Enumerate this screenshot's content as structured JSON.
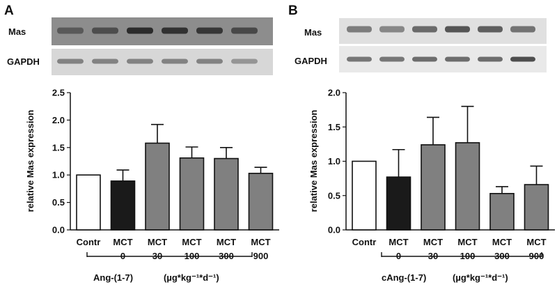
{
  "colors": {
    "control_fill": "#ffffff",
    "mct_fill": "#1a1a1a",
    "treated_fill": "#808080",
    "outline": "#111111"
  },
  "panels": [
    {
      "letter": "A",
      "blot_labels": [
        "Mas",
        "GAPDH"
      ],
      "blot_band_intensity": {
        "Mas": [
          0.45,
          0.55,
          0.85,
          0.8,
          0.75,
          0.6
        ],
        "GAPDH": [
          0.45,
          0.45,
          0.45,
          0.45,
          0.45,
          0.35
        ]
      },
      "treatment_label": "Ang-(1-7)",
      "unit_label": "(µg*kg⁻¹*d⁻¹)"
    },
    {
      "letter": "B",
      "blot_labels": [
        "Mas",
        "GAPDH"
      ],
      "blot_band_intensity": {
        "Mas": [
          0.5,
          0.45,
          0.6,
          0.7,
          0.65,
          0.55
        ],
        "GAPDH": [
          0.55,
          0.55,
          0.6,
          0.6,
          0.6,
          0.75
        ]
      },
      "treatment_label": "cAng-(1-7)",
      "unit_label": "(µg*kg⁻¹*d⁻¹)"
    }
  ],
  "chart_data": [
    {
      "type": "bar",
      "title": "",
      "xlabel": "",
      "ylabel": "relative Mas expression",
      "ylim": [
        0,
        2.5
      ],
      "yticks": [
        "0.0",
        "0.5",
        "1.0",
        "1.5",
        "2.0",
        "2.5"
      ],
      "categories": [
        {
          "line1": "Contr",
          "line2": ""
        },
        {
          "line1": "MCT",
          "line2": "0"
        },
        {
          "line1": "MCT",
          "line2": "30"
        },
        {
          "line1": "MCT",
          "line2": "100"
        },
        {
          "line1": "MCT",
          "line2": "300"
        },
        {
          "line1": "MCT",
          "line2": "900"
        }
      ],
      "values": [
        1.0,
        0.89,
        1.58,
        1.31,
        1.3,
        1.03
      ],
      "errors": [
        0,
        0.2,
        0.34,
        0.2,
        0.2,
        0.11
      ],
      "groups": [
        "control",
        "mct",
        "treated",
        "treated",
        "treated",
        "treated"
      ]
    },
    {
      "type": "bar",
      "title": "",
      "xlabel": "",
      "ylabel": "relative Mas expression",
      "ylim": [
        0,
        2.0
      ],
      "yticks": [
        "0.0",
        "0.5",
        "1.0",
        "1.5",
        "2.0"
      ],
      "categories": [
        {
          "line1": "Contr",
          "line2": ""
        },
        {
          "line1": "MCT",
          "line2": "0"
        },
        {
          "line1": "MCT",
          "line2": "30"
        },
        {
          "line1": "MCT",
          "line2": "100"
        },
        {
          "line1": "MCT",
          "line2": "300"
        },
        {
          "line1": "MCT",
          "line2": "900"
        }
      ],
      "values": [
        1.0,
        0.77,
        1.24,
        1.27,
        0.53,
        0.66
      ],
      "errors": [
        0,
        0.4,
        0.4,
        0.53,
        0.1,
        0.27
      ],
      "groups": [
        "control",
        "mct",
        "treated",
        "treated",
        "treated",
        "treated"
      ]
    }
  ]
}
